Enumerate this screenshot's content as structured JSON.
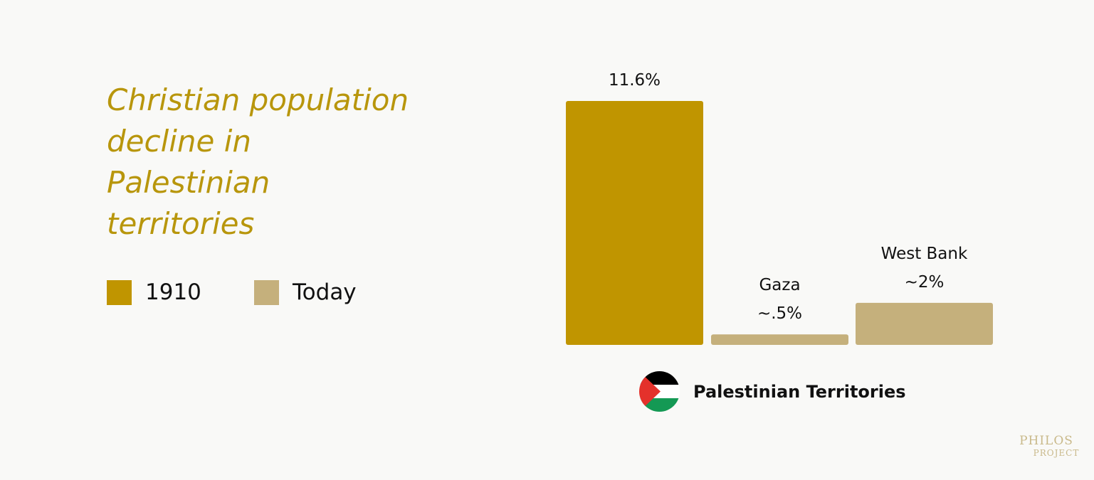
{
  "title": "Christian population decline in Palestinian territories",
  "legend": [
    {
      "label": "1910",
      "color": "#c09500"
    },
    {
      "label": "Today",
      "color": "#c5b07c"
    }
  ],
  "footer": {
    "label": "Palestinian Territories",
    "flag_icon": "palestine-flag-icon"
  },
  "logo": {
    "line1": "PHILOS",
    "line2": "PROJECT"
  },
  "chart_data": {
    "type": "bar",
    "ylim": [
      0,
      11.6
    ],
    "bars": [
      {
        "group": "1910",
        "category": "",
        "value": 11.6,
        "value_label": "11.6%",
        "color": "#c09500"
      },
      {
        "group": "Today",
        "category": "Gaza",
        "value": 0.5,
        "value_label": "~.5%",
        "color": "#c5b07c"
      },
      {
        "group": "Today",
        "category": "West Bank",
        "value": 2,
        "value_label": "~2%",
        "color": "#c5b07c"
      }
    ]
  }
}
